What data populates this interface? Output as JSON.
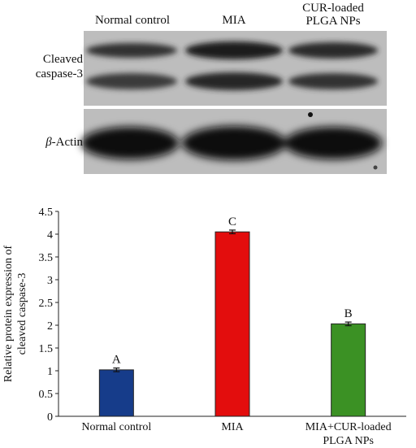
{
  "blot": {
    "lanes": [
      "Normal control",
      "MIA",
      "CUR-loaded\nPLGA NPs"
    ],
    "rows": [
      {
        "label": "Cleaved\ncaspase-3"
      },
      {
        "label_greek": "β",
        "label_rest": "-Actin"
      }
    ]
  },
  "chart_data": {
    "type": "bar",
    "title": "",
    "ylabel": "Relative protein expression of cleaved caspase-3",
    "xlabel": "",
    "categories": [
      "Normal control",
      "MIA",
      "MIA+CUR-loaded\nPLGA NPs"
    ],
    "values": [
      1.02,
      4.05,
      2.03
    ],
    "errors": [
      0.04,
      0.04,
      0.04
    ],
    "letters": [
      "A",
      "C",
      "B"
    ],
    "colors": [
      "#163c8a",
      "#e30d0d",
      "#3b9124"
    ],
    "ylim": [
      0,
      4.5
    ],
    "yticks": [
      "0",
      "0.5",
      "1",
      "1.5",
      "2",
      "2.5",
      "3",
      "3.5",
      "4",
      "4.5"
    ],
    "grid": false,
    "legend": "none"
  }
}
